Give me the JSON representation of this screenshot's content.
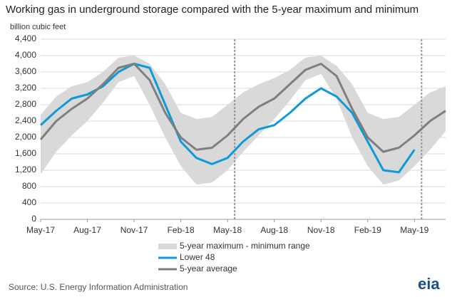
{
  "chart_data": {
    "type": "line",
    "title": "Working gas in underground  storage compared with the 5-year maximum and minimum",
    "y_label": "billion cubic feet",
    "source": "Source:  U.S. Energy Information Administration",
    "logo": "eia",
    "x": [
      "2017-05",
      "2017-06",
      "2017-07",
      "2017-08",
      "2017-09",
      "2017-10",
      "2017-11",
      "2017-12",
      "2018-01",
      "2018-02",
      "2018-03",
      "2018-04",
      "2018-05",
      "2018-06",
      "2018-07",
      "2018-08",
      "2018-09",
      "2018-10",
      "2018-11",
      "2018-12",
      "2019-01",
      "2019-02",
      "2019-03",
      "2019-04",
      "2019-05",
      "2019-06",
      "2019-07"
    ],
    "xlim": [
      "2017-05",
      "2019-07"
    ],
    "xticks": [
      {
        "value": "2017-05",
        "label": "May-17"
      },
      {
        "value": "2017-08",
        "label": "Aug-17"
      },
      {
        "value": "2017-11",
        "label": "Nov-17"
      },
      {
        "value": "2018-02",
        "label": "Feb-18"
      },
      {
        "value": "2018-05",
        "label": "May-18"
      },
      {
        "value": "2018-08",
        "label": "Aug-18"
      },
      {
        "value": "2018-11",
        "label": "Nov-18"
      },
      {
        "value": "2019-02",
        "label": "Feb-19"
      },
      {
        "value": "2019-05",
        "label": "May-19"
      }
    ],
    "markers": [
      "2018-05",
      "2019-05"
    ],
    "ylim": [
      0,
      4400
    ],
    "yticks": [
      0,
      400,
      800,
      {
        "value": 1200,
        "label": "1,200"
      },
      {
        "value": 1600,
        "label": "1,600"
      },
      {
        "value": 2000,
        "label": "2,000"
      },
      {
        "value": 2400,
        "label": "2,400"
      },
      {
        "value": 2800,
        "label": "2,800"
      },
      {
        "value": 3200,
        "label": "3,200"
      },
      {
        "value": 3600,
        "label": "3,600"
      },
      {
        "value": 4000,
        "label": "4,000"
      },
      {
        "value": 4400,
        "label": "4,400"
      }
    ],
    "grid": true,
    "series": [
      {
        "name": "5-year maximum - minimum range",
        "color": "#d9d9d9",
        "kind": "band",
        "values": [
          2550,
          3000,
          3250,
          3350,
          3600,
          3950,
          4000,
          3800,
          3300,
          2600,
          2450,
          2500,
          2800,
          3100,
          3300,
          3450,
          3650,
          3950,
          4000,
          3750,
          3300,
          2600,
          2450,
          2500,
          2800,
          3100,
          3250
        ],
        "lower": [
          1100,
          1650,
          2050,
          2400,
          2850,
          3350,
          3500,
          2800,
          2000,
          1300,
          850,
          900,
          1200,
          1650,
          2050,
          2450,
          2900,
          3400,
          3550,
          2950,
          2000,
          1300,
          850,
          950,
          1300,
          1700,
          2150
        ]
      },
      {
        "name": "Lower 48",
        "color": "#0d9ad6",
        "values": [
          2300,
          2650,
          2950,
          3050,
          3250,
          3600,
          3800,
          3700,
          2800,
          1900,
          1500,
          1350,
          1500,
          1900,
          2200,
          2300,
          2600,
          2950,
          3200,
          3000,
          2600,
          1900,
          1200,
          1150,
          1700,
          null,
          null
        ]
      },
      {
        "name": "5-year average",
        "color": "#7f7f7f",
        "values": [
          1950,
          2400,
          2700,
          2950,
          3300,
          3700,
          3800,
          3400,
          2600,
          2000,
          1700,
          1750,
          2050,
          2450,
          2750,
          2950,
          3300,
          3650,
          3800,
          3500,
          2700,
          2000,
          1650,
          1750,
          2050,
          2400,
          2650
        ]
      }
    ]
  }
}
